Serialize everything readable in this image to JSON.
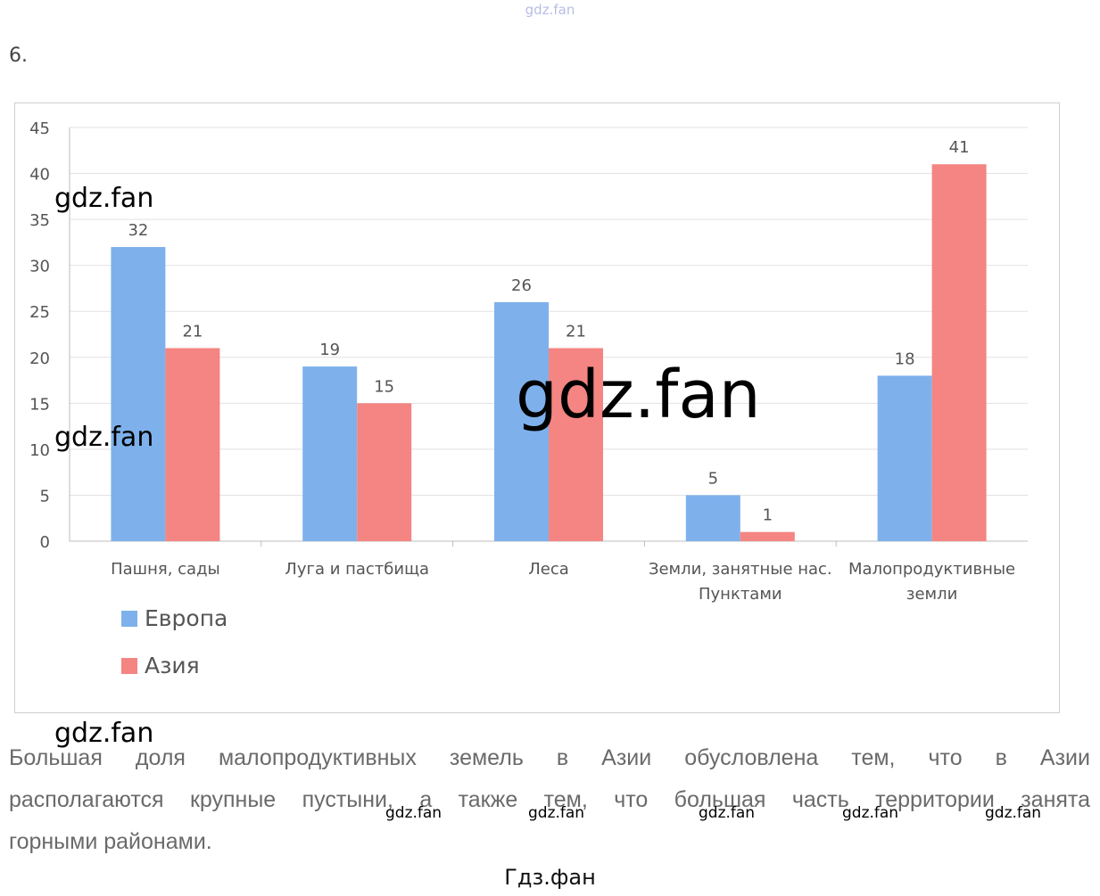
{
  "site_top": "gdz.fan",
  "task_number": "6.",
  "chart_data": {
    "type": "bar",
    "categories": [
      [
        "Пашня, сады"
      ],
      [
        "Луга и пастбища"
      ],
      [
        "Леса"
      ],
      [
        "Земли, занятные нас.",
        "Пунктами"
      ],
      [
        "Малопродуктивные",
        "земли"
      ]
    ],
    "series": [
      {
        "name": "Европа",
        "values": [
          32,
          19,
          26,
          5,
          18
        ],
        "color": "#7eb1ec"
      },
      {
        "name": "Азия",
        "values": [
          21,
          15,
          21,
          1,
          41
        ],
        "color": "#f48582"
      }
    ],
    "ylim": [
      0,
      45
    ],
    "yticks": [
      0,
      5,
      10,
      15,
      20,
      25,
      30,
      35,
      40,
      45
    ],
    "grid": true,
    "legend_position": "bottom-left",
    "data_labels": true
  },
  "watermark": "gdz.fan",
  "body_text": {
    "line1": [
      "Большая",
      "доля",
      "малопродуктивных",
      "земель",
      "в",
      "Азии",
      "обусловлена",
      "тем,",
      "что",
      "в",
      "Азии"
    ],
    "line2": [
      "располагаются",
      "крупные",
      "пустыни,",
      "а",
      "также",
      "тем,",
      "что",
      "большая",
      "часть",
      "территории",
      "занята"
    ],
    "line3": "горными районами."
  },
  "footer_site": "Гдз.фан"
}
